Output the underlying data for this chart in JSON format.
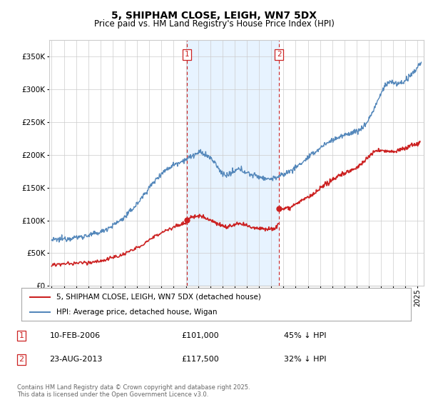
{
  "title": "5, SHIPHAM CLOSE, LEIGH, WN7 5DX",
  "subtitle": "Price paid vs. HM Land Registry's House Price Index (HPI)",
  "ytick_values": [
    0,
    50000,
    100000,
    150000,
    200000,
    250000,
    300000,
    350000
  ],
  "ylim": [
    0,
    375000
  ],
  "xlim_start": 1994.8,
  "xlim_end": 2025.5,
  "hpi_color": "#5588bb",
  "hpi_fill_color": "#ddeeff",
  "price_color": "#cc2222",
  "sale1_x": 2006.11,
  "sale1_y": 101000,
  "sale2_x": 2013.64,
  "sale2_y": 117500,
  "sale1_label": "1",
  "sale2_label": "2",
  "vline_color": "#cc2222",
  "legend_line1": "5, SHIPHAM CLOSE, LEIGH, WN7 5DX (detached house)",
  "legend_line2": "HPI: Average price, detached house, Wigan",
  "table_row1": [
    "1",
    "10-FEB-2006",
    "£101,000",
    "45% ↓ HPI"
  ],
  "table_row2": [
    "2",
    "23-AUG-2013",
    "£117,500",
    "32% ↓ HPI"
  ],
  "footnote": "Contains HM Land Registry data © Crown copyright and database right 2025.\nThis data is licensed under the Open Government Licence v3.0.",
  "bg_color": "#ffffff",
  "grid_color": "#cccccc",
  "xtick_years": [
    1995,
    1996,
    1997,
    1998,
    1999,
    2000,
    2001,
    2002,
    2003,
    2004,
    2005,
    2006,
    2007,
    2008,
    2009,
    2010,
    2011,
    2012,
    2013,
    2014,
    2015,
    2016,
    2017,
    2018,
    2019,
    2020,
    2021,
    2022,
    2023,
    2024,
    2025
  ]
}
